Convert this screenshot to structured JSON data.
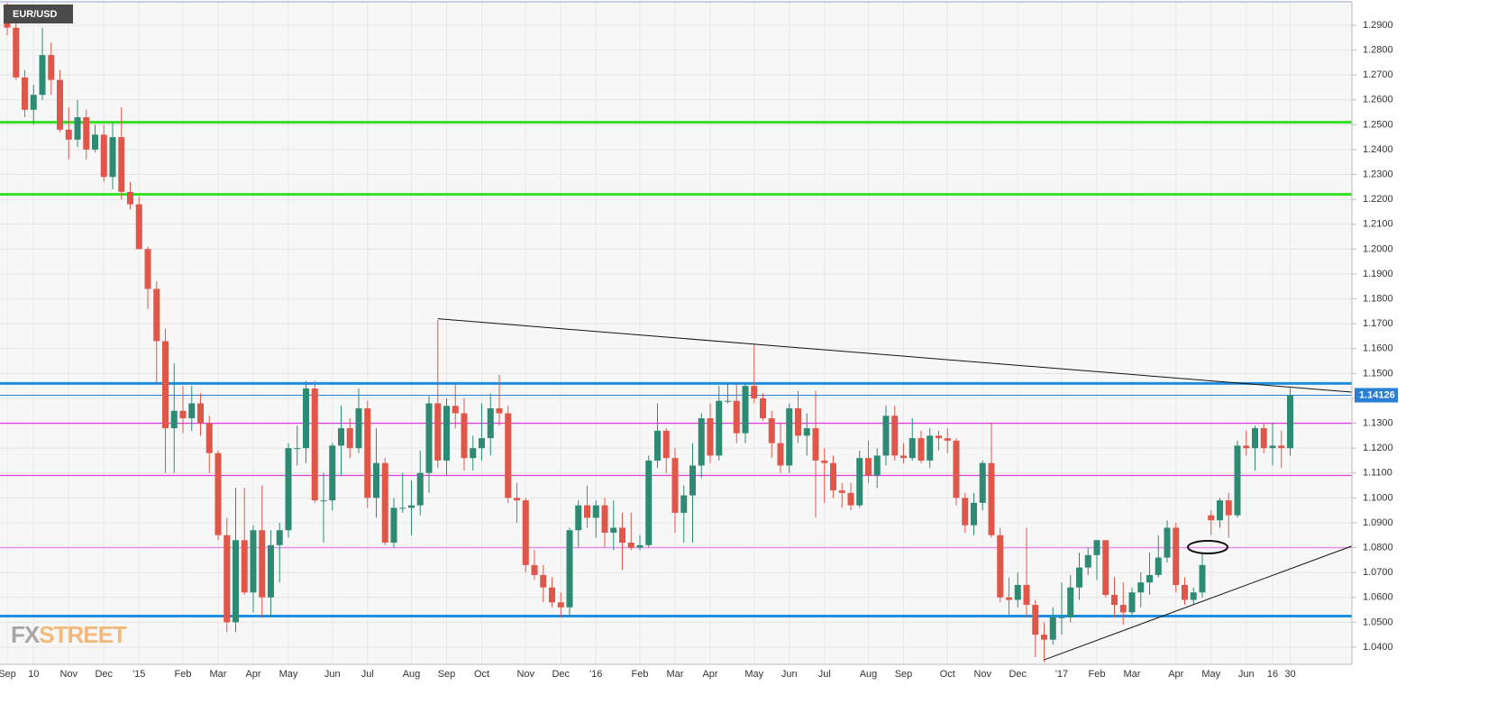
{
  "chart_data": {
    "type": "candlestick",
    "title": "EUR/USD",
    "logo": [
      "FX",
      "STREET"
    ],
    "up_color": "#2e8b73",
    "down_color": "#e0574a",
    "ylim": [
      1.0331,
      1.2994
    ],
    "yticks": [
      {
        "value": 1.04,
        "label": "1.0400"
      },
      {
        "value": 1.05,
        "label": "1.0500"
      },
      {
        "value": 1.06,
        "label": "1.0600"
      },
      {
        "value": 1.07,
        "label": "1.0700"
      },
      {
        "value": 1.08,
        "label": "1.0800"
      },
      {
        "value": 1.09,
        "label": "1.0900"
      },
      {
        "value": 1.1,
        "label": "1.1000"
      },
      {
        "value": 1.11,
        "label": "1.1100"
      },
      {
        "value": 1.12,
        "label": "1.1200"
      },
      {
        "value": 1.13,
        "label": "1.1300"
      },
      {
        "value": 1.14,
        "label": "1.1400"
      },
      {
        "value": 1.15,
        "label": "1.1500"
      },
      {
        "value": 1.16,
        "label": "1.1600"
      },
      {
        "value": 1.17,
        "label": "1.1700"
      },
      {
        "value": 1.18,
        "label": "1.1800"
      },
      {
        "value": 1.19,
        "label": "1.1900"
      },
      {
        "value": 1.2,
        "label": "1.2000"
      },
      {
        "value": 1.21,
        "label": "1.2100"
      },
      {
        "value": 1.22,
        "label": "1.2200"
      },
      {
        "value": 1.23,
        "label": "1.2300"
      },
      {
        "value": 1.24,
        "label": "1.2400"
      },
      {
        "value": 1.25,
        "label": "1.2500"
      },
      {
        "value": 1.26,
        "label": "1.2600"
      },
      {
        "value": 1.27,
        "label": "1.2700"
      },
      {
        "value": 1.28,
        "label": "1.2800"
      },
      {
        "value": 1.29,
        "label": "1.2900"
      }
    ],
    "grid": true,
    "last_price": 1.14126,
    "last_price_color": "#2a7fd4",
    "levels": [
      {
        "value": 1.251,
        "color": "#33e022"
      },
      {
        "value": 1.222,
        "color": "#33e022"
      },
      {
        "value": 1.146,
        "color": "#1f8ee0"
      },
      {
        "value": 1.0525,
        "color": "#1f8ee0"
      }
    ],
    "pivots": [
      {
        "value": 1.13,
        "color": "#e040e0"
      },
      {
        "value": 1.109,
        "color": "#e040e0"
      },
      {
        "value": 1.08,
        "color": "#ee88ee"
      }
    ],
    "trendlines": [
      {
        "points": [
          [
            49,
            1.172
          ],
          [
            153,
            1.1425
          ]
        ]
      },
      {
        "points": [
          [
            118,
            1.0349
          ],
          [
            153,
            1.0806
          ]
        ]
      }
    ],
    "categories": [
      "Sep",
      null,
      null,
      "10",
      null,
      null,
      null,
      "Nov",
      null,
      null,
      null,
      "Dec",
      null,
      null,
      null,
      "'15",
      null,
      null,
      null,
      null,
      "Feb",
      null,
      null,
      null,
      "Mar",
      null,
      null,
      null,
      "Apr",
      null,
      null,
      null,
      "May",
      null,
      null,
      null,
      null,
      "Jun",
      null,
      null,
      null,
      "Jul",
      null,
      null,
      null,
      null,
      "Aug",
      null,
      null,
      null,
      "Sep",
      null,
      null,
      null,
      "Oct",
      null,
      null,
      null,
      null,
      "Nov",
      null,
      null,
      null,
      "Dec",
      null,
      null,
      null,
      "'16",
      null,
      null,
      null,
      null,
      "Feb",
      null,
      null,
      null,
      "Mar",
      null,
      null,
      null,
      "Apr",
      null,
      null,
      null,
      null,
      "May",
      null,
      null,
      null,
      "Jun",
      null,
      null,
      null,
      "Jul",
      null,
      null,
      null,
      null,
      "Aug",
      null,
      null,
      null,
      "Sep",
      null,
      null,
      null,
      null,
      "Oct",
      null,
      null,
      null,
      "Nov",
      null,
      null,
      null,
      "Dec",
      null,
      null,
      null,
      null,
      "'17",
      null,
      null,
      null,
      "Feb",
      null,
      null,
      null,
      "Mar",
      null,
      null,
      null,
      null,
      "Apr",
      null,
      null,
      null,
      "May",
      null,
      null,
      null,
      "Jun",
      null,
      null,
      "16",
      null,
      "30"
    ],
    "candles": [
      [
        1.295,
        1.299,
        1.286,
        1.289
      ],
      [
        1.289,
        1.292,
        1.268,
        1.269
      ],
      [
        1.269,
        1.272,
        1.253,
        1.256
      ],
      [
        1.256,
        1.266,
        1.25,
        1.262
      ],
      [
        1.262,
        1.289,
        1.26,
        1.278
      ],
      [
        1.278,
        1.283,
        1.262,
        1.268
      ],
      [
        1.268,
        1.272,
        1.247,
        1.248
      ],
      [
        1.248,
        1.257,
        1.236,
        1.244
      ],
      [
        1.244,
        1.26,
        1.241,
        1.253
      ],
      [
        1.253,
        1.256,
        1.236,
        1.24
      ],
      [
        1.24,
        1.25,
        1.239,
        1.246
      ],
      [
        1.246,
        1.25,
        1.227,
        1.229
      ],
      [
        1.229,
        1.251,
        1.224,
        1.245
      ],
      [
        1.245,
        1.257,
        1.22,
        1.223
      ],
      [
        1.223,
        1.227,
        1.216,
        1.218
      ],
      [
        1.218,
        1.221,
        1.2,
        1.2
      ],
      [
        1.2,
        1.201,
        1.176,
        1.184
      ],
      [
        1.184,
        1.187,
        1.146,
        1.163
      ],
      [
        1.163,
        1.168,
        1.11,
        1.128
      ],
      [
        1.128,
        1.154,
        1.11,
        1.135
      ],
      [
        1.135,
        1.145,
        1.126,
        1.132
      ],
      [
        1.132,
        1.145,
        1.127,
        1.138
      ],
      [
        1.138,
        1.142,
        1.125,
        1.13
      ],
      [
        1.13,
        1.133,
        1.11,
        1.118
      ],
      [
        1.118,
        1.119,
        1.083,
        1.085
      ],
      [
        1.085,
        1.092,
        1.046,
        1.05
      ],
      [
        1.05,
        1.104,
        1.046,
        1.083
      ],
      [
        1.083,
        1.104,
        1.061,
        1.062
      ],
      [
        1.062,
        1.089,
        1.054,
        1.087
      ],
      [
        1.087,
        1.105,
        1.052,
        1.06
      ],
      [
        1.06,
        1.087,
        1.052,
        1.081
      ],
      [
        1.081,
        1.09,
        1.066,
        1.087
      ],
      [
        1.087,
        1.122,
        1.084,
        1.12
      ],
      [
        1.12,
        1.129,
        1.113,
        1.12
      ],
      [
        1.12,
        1.147,
        1.114,
        1.144
      ],
      [
        1.144,
        1.147,
        1.098,
        1.099
      ],
      [
        1.099,
        1.11,
        1.082,
        1.099
      ],
      [
        1.099,
        1.122,
        1.095,
        1.121
      ],
      [
        1.121,
        1.137,
        1.109,
        1.128
      ],
      [
        1.128,
        1.132,
        1.116,
        1.12
      ],
      [
        1.12,
        1.144,
        1.118,
        1.136
      ],
      [
        1.136,
        1.139,
        1.096,
        1.1
      ],
      [
        1.1,
        1.128,
        1.092,
        1.114
      ],
      [
        1.114,
        1.116,
        1.081,
        1.082
      ],
      [
        1.082,
        1.1,
        1.08,
        1.096
      ],
      [
        1.096,
        1.11,
        1.094,
        1.096
      ],
      [
        1.096,
        1.107,
        1.085,
        1.097
      ],
      [
        1.097,
        1.119,
        1.093,
        1.11
      ],
      [
        1.11,
        1.141,
        1.102,
        1.138
      ],
      [
        1.138,
        1.1715,
        1.112,
        1.115
      ],
      [
        1.115,
        1.14,
        1.109,
        1.137
      ],
      [
        1.137,
        1.146,
        1.128,
        1.134
      ],
      [
        1.134,
        1.14,
        1.111,
        1.116
      ],
      [
        1.116,
        1.125,
        1.111,
        1.12
      ],
      [
        1.12,
        1.138,
        1.115,
        1.124
      ],
      [
        1.124,
        1.142,
        1.117,
        1.136
      ],
      [
        1.136,
        1.1495,
        1.129,
        1.134
      ],
      [
        1.134,
        1.137,
        1.098,
        1.1
      ],
      [
        1.1,
        1.106,
        1.09,
        1.099
      ],
      [
        1.099,
        1.1,
        1.07,
        1.073
      ],
      [
        1.073,
        1.079,
        1.067,
        1.069
      ],
      [
        1.069,
        1.073,
        1.058,
        1.064
      ],
      [
        1.064,
        1.068,
        1.056,
        1.058
      ],
      [
        1.058,
        1.062,
        1.052,
        1.056
      ],
      [
        1.056,
        1.088,
        1.052,
        1.087
      ],
      [
        1.087,
        1.099,
        1.08,
        1.097
      ],
      [
        1.097,
        1.105,
        1.088,
        1.092
      ],
      [
        1.092,
        1.099,
        1.084,
        1.097
      ],
      [
        1.097,
        1.1,
        1.08,
        1.086
      ],
      [
        1.086,
        1.099,
        1.079,
        1.088
      ],
      [
        1.088,
        1.094,
        1.071,
        1.082
      ],
      [
        1.082,
        1.094,
        1.079,
        1.08
      ],
      [
        1.08,
        1.085,
        1.079,
        1.081
      ],
      [
        1.081,
        1.117,
        1.08,
        1.115
      ],
      [
        1.115,
        1.138,
        1.112,
        1.127
      ],
      [
        1.127,
        1.128,
        1.11,
        1.116
      ],
      [
        1.116,
        1.12,
        1.086,
        1.094
      ],
      [
        1.094,
        1.105,
        1.082,
        1.101
      ],
      [
        1.101,
        1.122,
        1.082,
        1.113
      ],
      [
        1.113,
        1.134,
        1.108,
        1.132
      ],
      [
        1.132,
        1.138,
        1.114,
        1.117
      ],
      [
        1.117,
        1.145,
        1.115,
        1.139
      ],
      [
        1.139,
        1.146,
        1.138,
        1.139
      ],
      [
        1.139,
        1.146,
        1.122,
        1.126
      ],
      [
        1.126,
        1.146,
        1.122,
        1.145
      ],
      [
        1.145,
        1.1615,
        1.138,
        1.14
      ],
      [
        1.14,
        1.142,
        1.131,
        1.132
      ],
      [
        1.132,
        1.135,
        1.116,
        1.122
      ],
      [
        1.122,
        1.13,
        1.11,
        1.113
      ],
      [
        1.113,
        1.138,
        1.11,
        1.136
      ],
      [
        1.136,
        1.143,
        1.122,
        1.125
      ],
      [
        1.125,
        1.134,
        1.117,
        1.128
      ],
      [
        1.128,
        1.143,
        1.092,
        1.115
      ],
      [
        1.115,
        1.12,
        1.098,
        1.114
      ],
      [
        1.114,
        1.117,
        1.1,
        1.103
      ],
      [
        1.103,
        1.106,
        1.096,
        1.102
      ],
      [
        1.102,
        1.106,
        1.095,
        1.097
      ],
      [
        1.097,
        1.119,
        1.096,
        1.116
      ],
      [
        1.116,
        1.123,
        1.106,
        1.109
      ],
      [
        1.109,
        1.12,
        1.104,
        1.117
      ],
      [
        1.117,
        1.137,
        1.113,
        1.133
      ],
      [
        1.133,
        1.137,
        1.115,
        1.117
      ],
      [
        1.117,
        1.122,
        1.114,
        1.116
      ],
      [
        1.116,
        1.132,
        1.115,
        1.124
      ],
      [
        1.124,
        1.127,
        1.114,
        1.115
      ],
      [
        1.115,
        1.128,
        1.112,
        1.125
      ],
      [
        1.125,
        1.127,
        1.119,
        1.124
      ],
      [
        1.124,
        1.128,
        1.118,
        1.123
      ],
      [
        1.123,
        1.124,
        1.097,
        1.1
      ],
      [
        1.1,
        1.102,
        1.086,
        1.089
      ],
      [
        1.089,
        1.102,
        1.085,
        1.098
      ],
      [
        1.098,
        1.115,
        1.095,
        1.114
      ],
      [
        1.114,
        1.13,
        1.084,
        1.085
      ],
      [
        1.085,
        1.088,
        1.058,
        1.06
      ],
      [
        1.06,
        1.068,
        1.052,
        1.059
      ],
      [
        1.059,
        1.07,
        1.056,
        1.065
      ],
      [
        1.065,
        1.088,
        1.052,
        1.057
      ],
      [
        1.057,
        1.059,
        1.036,
        1.045
      ],
      [
        1.045,
        1.05,
        1.034,
        1.043
      ],
      [
        1.043,
        1.056,
        1.041,
        1.052
      ],
      [
        1.052,
        1.066,
        1.045,
        1.052
      ],
      [
        1.052,
        1.069,
        1.05,
        1.064
      ],
      [
        1.064,
        1.078,
        1.059,
        1.072
      ],
      [
        1.072,
        1.08,
        1.069,
        1.077
      ],
      [
        1.077,
        1.083,
        1.067,
        1.083
      ],
      [
        1.083,
        1.083,
        1.06,
        1.061
      ],
      [
        1.061,
        1.068,
        1.052,
        1.057
      ],
      [
        1.057,
        1.066,
        1.049,
        1.054
      ],
      [
        1.054,
        1.064,
        1.052,
        1.062
      ],
      [
        1.062,
        1.07,
        1.056,
        1.066
      ],
      [
        1.066,
        1.078,
        1.061,
        1.069
      ],
      [
        1.069,
        1.085,
        1.068,
        1.076
      ],
      [
        1.076,
        1.091,
        1.074,
        1.088
      ],
      [
        1.088,
        1.09,
        1.062,
        1.065
      ],
      [
        1.065,
        1.068,
        1.057,
        1.059
      ],
      [
        1.059,
        1.064,
        1.057,
        1.062
      ],
      [
        1.062,
        1.078,
        1.06,
        1.073
      ],
      [
        1.093,
        1.095,
        1.085,
        1.091
      ],
      [
        1.091,
        1.1,
        1.088,
        1.099
      ],
      [
        1.099,
        1.102,
        1.084,
        1.093
      ],
      [
        1.093,
        1.123,
        1.092,
        1.121
      ],
      [
        1.121,
        1.127,
        1.117,
        1.12
      ],
      [
        1.12,
        1.129,
        1.111,
        1.128
      ],
      [
        1.128,
        1.13,
        1.118,
        1.12
      ],
      [
        1.12,
        1.13,
        1.113,
        1.121
      ],
      [
        1.121,
        1.127,
        1.112,
        1.12
      ],
      [
        1.12,
        1.144,
        1.117,
        1.1413
      ]
    ]
  }
}
